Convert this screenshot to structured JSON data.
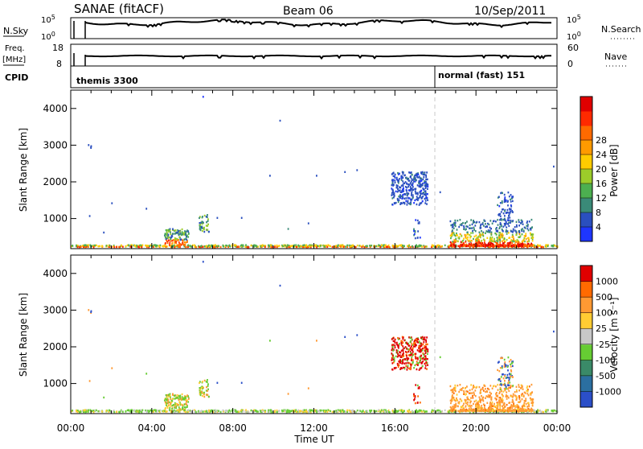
{
  "header": {
    "station": "SANAE (fitACF)",
    "beam": "Beam 06",
    "date": "10/Sep/2011"
  },
  "strips": {
    "nsky": {
      "label": "N.Sky",
      "ticks": [
        "10^5",
        "10^0"
      ]
    },
    "nsearch": {
      "label": "N.Search",
      "ticks": [
        "10^5",
        "10^0"
      ]
    },
    "freq": {
      "label": "Freq.",
      "unit": "[MHz]",
      "ticks": [
        "18",
        "8"
      ]
    },
    "nave": {
      "label": "Nave",
      "ticks": [
        "60",
        "0"
      ]
    },
    "cpid": {
      "label": "CPID",
      "modes": [
        "themis 3300",
        "normal (fast) 151"
      ]
    }
  },
  "chart_data": [
    {
      "type": "heatmap",
      "name": "power",
      "ylabel": "Slant Range [km]",
      "xlabel": "",
      "x_ticks": [
        "00:00",
        "04:00",
        "08:00",
        "12:00",
        "16:00",
        "20:00",
        "00:00"
      ],
      "y_ticks": [
        "1000",
        "2000",
        "3000",
        "4000"
      ],
      "ylim": [
        180,
        4500
      ],
      "xlim_hours": [
        0,
        24
      ],
      "colorbar": {
        "label": "Power [dB]",
        "ticks": [
          "4",
          "8",
          "12",
          "16",
          "20",
          "24",
          "28"
        ],
        "colors": [
          "#1e36ff",
          "#2a4fbf",
          "#3a8a78",
          "#4caf50",
          "#9ccc2a",
          "#ffcc00",
          "#ff9a00",
          "#ff6a00",
          "#ff2a00",
          "#e00000"
        ]
      }
    },
    {
      "type": "heatmap",
      "name": "velocity",
      "ylabel": "Slant Range [km]",
      "xlabel": "Time UT",
      "x_ticks": [
        "00:00",
        "04:00",
        "08:00",
        "12:00",
        "16:00",
        "20:00",
        "00:00"
      ],
      "y_ticks": [
        "1000",
        "2000",
        "3000",
        "4000"
      ],
      "ylim": [
        180,
        4500
      ],
      "xlim_hours": [
        0,
        24
      ],
      "colorbar": {
        "label": "Velocity [m s⁻¹]",
        "ticks": [
          "1000",
          "500",
          "100",
          "25",
          "-25",
          "-100",
          "-500",
          "-1000"
        ],
        "colors": [
          "#2b4fc8",
          "#2b6fa0",
          "#3a8a68",
          "#66cc33",
          "#c8c8c8",
          "#ffcc33",
          "#ff9933",
          "#ff6a00",
          "#e00000"
        ]
      }
    }
  ],
  "colors": {
    "marker_line": "#c8c8c8",
    "power_low": "#2a4fbf",
    "power_high": "#e00000",
    "vel_neg": "#ff8c00",
    "vel_pos": "#2b4fc8"
  }
}
